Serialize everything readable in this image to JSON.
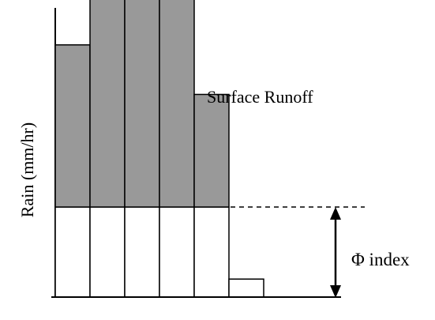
{
  "ylabel": "Rain (mm/hr)",
  "surface_runoff_label": "Surface Runoff",
  "phi_index_label": "Φ index",
  "colors": {
    "runoff_fill": "#999999",
    "infiltration_fill": "#ffffff",
    "stroke": "#000000"
  },
  "hyetograph": {
    "phi_index_value": 1,
    "bar_intensities": [
      1.8,
      2.9,
      3.75,
      2.55,
      1.25,
      -0.8
    ]
  }
}
